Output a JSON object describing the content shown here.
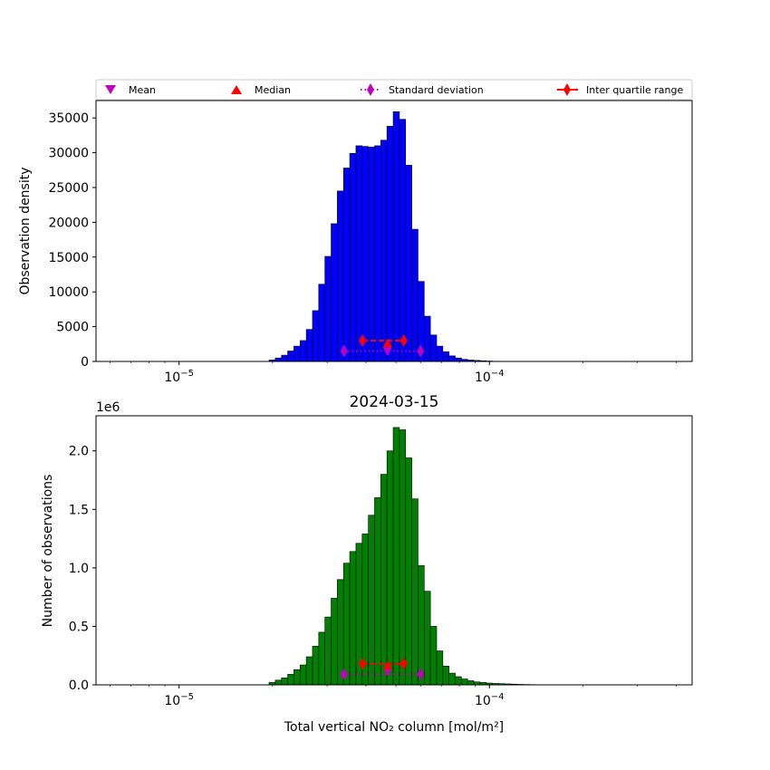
{
  "legend": {
    "mean_label": "Mean",
    "median_label": "Median",
    "std_label": "Standard deviation",
    "iqr_label": "Inter quartile range"
  },
  "colors": {
    "top_bars": "#0000ff",
    "bottom_bars": "#008000",
    "mean": "#bf00bf",
    "median": "#ff0000",
    "std": "#bf00bf",
    "iqr": "#ff0000",
    "edge": "#000000"
  },
  "chart_data": [
    {
      "type": "bar",
      "title": "",
      "xlabel": "",
      "ylabel": "Observation density",
      "xscale": "log",
      "xlim": [
        5.4e-06,
        0.00045
      ],
      "ylim": [
        0,
        37500
      ],
      "xticks": [
        {
          "value": 1e-05,
          "label": "10−5"
        },
        {
          "value": 0.0001,
          "label": "10−4"
        }
      ],
      "yticks": [
        0,
        5000,
        10000,
        15000,
        20000,
        25000,
        30000,
        35000
      ],
      "bar_color": "#0000ff",
      "bin_edges_log10": [
        -4.71,
        -4.69,
        -4.67,
        -4.65,
        -4.63,
        -4.61,
        -4.59,
        -4.57,
        -4.55,
        -4.53,
        -4.51,
        -4.49,
        -4.47,
        -4.45,
        -4.43,
        -4.41,
        -4.39,
        -4.37,
        -4.35,
        -4.33,
        -4.31,
        -4.29,
        -4.27,
        -4.25,
        -4.23,
        -4.21,
        -4.19,
        -4.17,
        -4.15,
        -4.13,
        -4.11,
        -4.09,
        -4.07,
        -4.05,
        -4.03,
        -4.01,
        -3.99,
        -3.97,
        -3.95,
        -3.93,
        -3.91,
        -3.89,
        -3.87,
        -3.85
      ],
      "values": [
        200,
        500,
        900,
        1500,
        2200,
        3000,
        4600,
        7300,
        11100,
        15100,
        19800,
        24500,
        27800,
        29900,
        31000,
        30900,
        30800,
        31000,
        31800,
        33800,
        35900,
        34800,
        28200,
        19000,
        11500,
        6500,
        3800,
        2200,
        1400,
        800,
        500,
        300,
        200,
        150,
        100,
        60,
        30,
        20,
        10,
        5,
        0,
        0,
        0
      ],
      "stats": {
        "mean": {
          "x": 4.7e-05,
          "y": 1400
        },
        "median": {
          "x": 4.7e-05,
          "y": 2700
        },
        "std": {
          "x": [
            3.4e-05,
            6e-05
          ],
          "y": 1500
        },
        "iqr": {
          "x": [
            3.9e-05,
            5.3e-05
          ],
          "y": 3000
        }
      }
    },
    {
      "type": "bar",
      "title": "2024-03-15",
      "xlabel": "Total vertical NO₂ column [mol/m²]",
      "ylabel": "Number of observations",
      "offset_label": "1e6",
      "xscale": "log",
      "xlim": [
        5.4e-06,
        0.00045
      ],
      "ylim": [
        0,
        2.3
      ],
      "xticks": [
        {
          "value": 1e-05,
          "label": "10−5"
        },
        {
          "value": 0.0001,
          "label": "10−4"
        }
      ],
      "yticks": [
        0.0,
        0.5,
        1.0,
        1.5,
        2.0
      ],
      "bar_color": "#008000",
      "bin_edges_log10": [
        -4.71,
        -4.69,
        -4.67,
        -4.65,
        -4.63,
        -4.61,
        -4.59,
        -4.57,
        -4.55,
        -4.53,
        -4.51,
        -4.49,
        -4.47,
        -4.45,
        -4.43,
        -4.41,
        -4.39,
        -4.37,
        -4.35,
        -4.33,
        -4.31,
        -4.29,
        -4.27,
        -4.25,
        -4.23,
        -4.21,
        -4.19,
        -4.17,
        -4.15,
        -4.13,
        -4.11,
        -4.09,
        -4.07,
        -4.05,
        -4.03,
        -4.01,
        -3.99,
        -3.97,
        -3.95,
        -3.93,
        -3.91,
        -3.89,
        -3.87,
        -3.85,
        -3.83
      ],
      "values": [
        0.02,
        0.04,
        0.06,
        0.09,
        0.13,
        0.17,
        0.24,
        0.33,
        0.45,
        0.58,
        0.74,
        0.9,
        1.04,
        1.14,
        1.21,
        1.29,
        1.45,
        1.6,
        1.8,
        2.0,
        2.2,
        2.18,
        1.94,
        1.59,
        1.02,
        0.8,
        0.5,
        0.29,
        0.16,
        0.1,
        0.07,
        0.05,
        0.035,
        0.025,
        0.02,
        0.015,
        0.012,
        0.01,
        0.008,
        0.006,
        0.004,
        0.003,
        0.002,
        0.001
      ],
      "stats": {
        "mean": {
          "x": 4.7e-05,
          "y": 0.11
        },
        "median": {
          "x": 4.7e-05,
          "y": 0.17
        },
        "std": {
          "x": [
            3.4e-05,
            6e-05
          ],
          "y": 0.09
        },
        "iqr": {
          "x": [
            3.9e-05,
            5.3e-05
          ],
          "y": 0.18
        }
      }
    }
  ]
}
